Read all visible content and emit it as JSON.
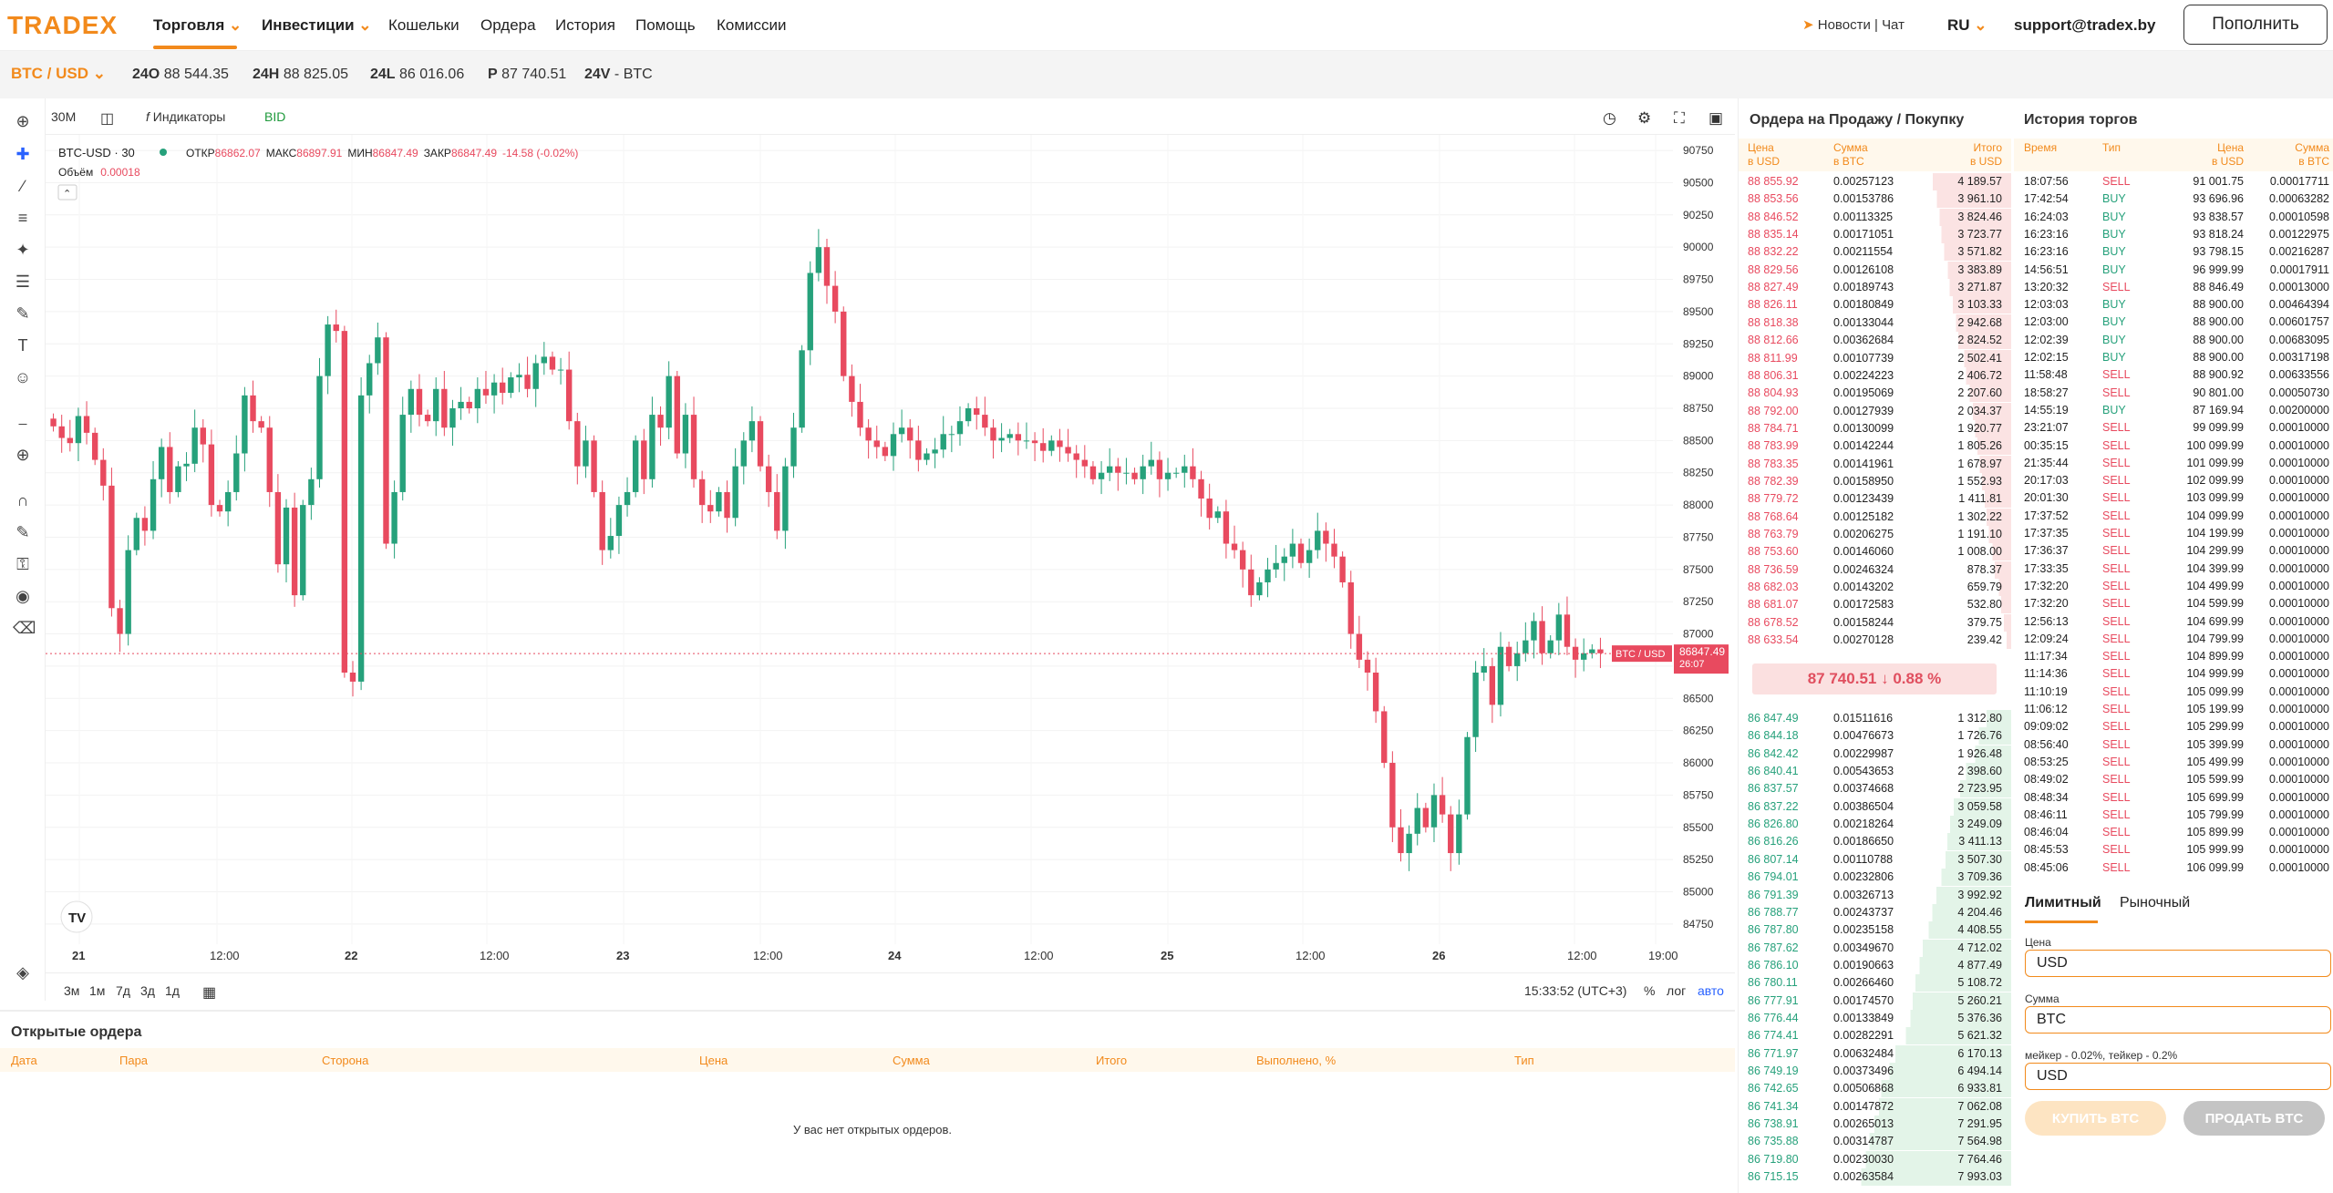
{
  "header": {
    "logo": "TRADEX",
    "nav": [
      "Торговля",
      "Инвестиции",
      "Кошельки",
      "Ордера",
      "История",
      "Помощь",
      "Комиссии"
    ],
    "news": "Новости",
    "chat": "Чат",
    "lang": "RU",
    "email": "support@tradex.by",
    "deposit": "Пополнить"
  },
  "ticker": {
    "pair": "BTC / USD",
    "open_label": "24O",
    "open": "88 544.35",
    "high_label": "24H",
    "high": "88 825.05",
    "low_label": "24L",
    "low": "86 016.06",
    "price_label": "P",
    "price": "87 740.51",
    "vol_label": "24V",
    "vol": "- BTC"
  },
  "charttop": {
    "interval": "30M",
    "indicators": "Индикаторы",
    "bid": "BID"
  },
  "legend": {
    "symbol": "BTC-USD · 30",
    "o_label": "ОТКР",
    "o": "86862.07",
    "h_label": "МАКС",
    "h": "86897.91",
    "l_label": "МИН",
    "l": "86847.49",
    "c_label": "ЗАКР",
    "c": "86847.49",
    "chg": "-14.58 (-0.02%)",
    "vol_label": "Объём",
    "vol": "0.00018"
  },
  "price_tag": {
    "label": "BTC / USD",
    "price": "86847.49",
    "timer": "26:07"
  },
  "chartbottom": {
    "ranges": [
      "3м",
      "1м",
      "7д",
      "3д",
      "1д"
    ],
    "time": "15:33:52 (UTC+3)",
    "pct": "%",
    "log": "лог",
    "auto": "авто"
  },
  "chart_data": {
    "type": "candlestick",
    "title": "BTC-USD · 30",
    "y_ticks": [
      90750,
      90500,
      90250,
      90000,
      89750,
      89500,
      89250,
      89000,
      88750,
      88500,
      88250,
      88000,
      87750,
      87500,
      87250,
      87000,
      86750,
      86500,
      86250,
      86000,
      85750,
      85500,
      85250,
      85000,
      84750
    ],
    "ylim": [
      84650,
      90800
    ],
    "x_ticks": [
      "21",
      "12:00",
      "22",
      "12:00",
      "23",
      "12:00",
      "24",
      "12:00",
      "25",
      "12:00",
      "26",
      "12:00",
      "19:00"
    ],
    "last_price": 86847.49,
    "close": [
      88610,
      88520,
      88480,
      88690,
      88560,
      88350,
      88150,
      87200,
      87000,
      87650,
      87900,
      87800,
      88200,
      88450,
      88100,
      88300,
      88320,
      88600,
      88470,
      88000,
      87950,
      88100,
      88400,
      88850,
      88650,
      88600,
      88100,
      87540,
      87980,
      87300,
      88000,
      88200,
      89000,
      89400,
      89350,
      86700,
      86630,
      88850,
      89100,
      89300,
      87700,
      88100,
      88700,
      88900,
      88700,
      88650,
      88900,
      88600,
      88750,
      88800,
      88750,
      88900,
      88850,
      88950,
      88870,
      88990,
      89010,
      88900,
      89100,
      89150,
      89050,
      89050,
      88650,
      88300,
      88500,
      88100,
      87650,
      87760,
      88000,
      88100,
      88500,
      88200,
      88700,
      88600,
      89000,
      88400,
      88700,
      88200,
      88000,
      87950,
      88100,
      87900,
      88300,
      88500,
      88650,
      88300,
      88100,
      87800,
      88300,
      88600,
      89200,
      89800,
      90000,
      89700,
      89500,
      89000,
      88800,
      88600,
      88500,
      88450,
      88380,
      88550,
      88600,
      88500,
      88350,
      88400,
      88430,
      88550,
      88550,
      88650,
      88750,
      88700,
      88600,
      88500,
      88520,
      88550,
      88500,
      88500,
      88480,
      88420,
      88500,
      88450,
      88400,
      88350,
      88300,
      88200,
      88250,
      88300,
      88250,
      88250,
      88200,
      88300,
      88350,
      88200,
      88250,
      88250,
      88300,
      88200,
      88050,
      87900,
      87950,
      87700,
      87650,
      87500,
      87300,
      87400,
      87500,
      87550,
      87600,
      87700,
      87550,
      87650,
      87800,
      87700,
      87600,
      87400,
      87000,
      86800,
      86700,
      86400,
      86000,
      85500,
      85300,
      85450,
      85650,
      85500,
      85750,
      85600,
      85300,
      85600,
      86200,
      86700,
      86750,
      86450,
      86900,
      86750,
      86850,
      86950,
      87100,
      86850,
      86950,
      87150,
      86900,
      86800,
      86850,
      86880,
      86850
    ]
  },
  "orderbook": {
    "title": "Ордера на Продажу / Покупку",
    "h_price": "Цена",
    "h_price_u": "в USD",
    "h_amount": "Сумма",
    "h_amount_u": "в BTC",
    "h_total": "Итого",
    "h_total_u": "в USD",
    "asks": [
      [
        "88 855.92",
        "0.00257123",
        "4 189.57"
      ],
      [
        "88 853.56",
        "0.00153786",
        "3 961.10"
      ],
      [
        "88 846.52",
        "0.00113325",
        "3 824.46"
      ],
      [
        "88 835.14",
        "0.00171051",
        "3 723.77"
      ],
      [
        "88 832.22",
        "0.00211554",
        "3 571.82"
      ],
      [
        "88 829.56",
        "0.00126108",
        "3 383.89"
      ],
      [
        "88 827.49",
        "0.00189743",
        "3 271.87"
      ],
      [
        "88 826.11",
        "0.00180849",
        "3 103.33"
      ],
      [
        "88 818.38",
        "0.00133044",
        "2 942.68"
      ],
      [
        "88 812.66",
        "0.00362684",
        "2 824.52"
      ],
      [
        "88 811.99",
        "0.00107739",
        "2 502.41"
      ],
      [
        "88 806.31",
        "0.00224223",
        "2 406.72"
      ],
      [
        "88 804.93",
        "0.00195069",
        "2 207.60"
      ],
      [
        "88 792.00",
        "0.00127939",
        "2 034.37"
      ],
      [
        "88 784.71",
        "0.00130099",
        "1 920.77"
      ],
      [
        "88 783.99",
        "0.00142244",
        "1 805.26"
      ],
      [
        "88 783.35",
        "0.00141961",
        "1 678.97"
      ],
      [
        "88 782.39",
        "0.00158950",
        "1 552.93"
      ],
      [
        "88 779.72",
        "0.00123439",
        "1 411.81"
      ],
      [
        "88 768.64",
        "0.00125182",
        "1 302.22"
      ],
      [
        "88 763.79",
        "0.00206275",
        "1 191.10"
      ],
      [
        "88 753.60",
        "0.00146060",
        "1 008.00"
      ],
      [
        "88 736.59",
        "0.00246324",
        "878.37"
      ],
      [
        "88 682.03",
        "0.00143202",
        "659.79"
      ],
      [
        "88 681.07",
        "0.00172583",
        "532.80"
      ],
      [
        "88 678.52",
        "0.00158244",
        "379.75"
      ],
      [
        "88 633.54",
        "0.00270128",
        "239.42"
      ]
    ],
    "mid": "87 740.51",
    "mid_change": "0.88 %",
    "bids": [
      [
        "86 847.49",
        "0.01511616",
        "1 312.80"
      ],
      [
        "86 844.18",
        "0.00476673",
        "1 726.76"
      ],
      [
        "86 842.42",
        "0.00229987",
        "1 926.48"
      ],
      [
        "86 840.41",
        "0.00543653",
        "2 398.60"
      ],
      [
        "86 837.57",
        "0.00374668",
        "2 723.95"
      ],
      [
        "86 837.22",
        "0.00386504",
        "3 059.58"
      ],
      [
        "86 826.80",
        "0.00218264",
        "3 249.09"
      ],
      [
        "86 816.26",
        "0.00186650",
        "3 411.13"
      ],
      [
        "86 807.14",
        "0.00110788",
        "3 507.30"
      ],
      [
        "86 794.01",
        "0.00232806",
        "3 709.36"
      ],
      [
        "86 791.39",
        "0.00326713",
        "3 992.92"
      ],
      [
        "86 788.77",
        "0.00243737",
        "4 204.46"
      ],
      [
        "86 787.80",
        "0.00235158",
        "4 408.55"
      ],
      [
        "86 787.62",
        "0.00349670",
        "4 712.02"
      ],
      [
        "86 786.10",
        "0.00190663",
        "4 877.49"
      ],
      [
        "86 780.11",
        "0.00266460",
        "5 108.72"
      ],
      [
        "86 777.91",
        "0.00174570",
        "5 260.21"
      ],
      [
        "86 776.44",
        "0.00133849",
        "5 376.36"
      ],
      [
        "86 774.41",
        "0.00282291",
        "5 621.32"
      ],
      [
        "86 771.97",
        "0.00632484",
        "6 170.13"
      ],
      [
        "86 749.19",
        "0.00373496",
        "6 494.14"
      ],
      [
        "86 742.65",
        "0.00506868",
        "6 933.81"
      ],
      [
        "86 741.34",
        "0.00147872",
        "7 062.08"
      ],
      [
        "86 738.91",
        "0.00265013",
        "7 291.95"
      ],
      [
        "86 735.88",
        "0.00314787",
        "7 564.98"
      ],
      [
        "86 719.80",
        "0.00230030",
        "7 764.46"
      ],
      [
        "86 715.15",
        "0.00263584",
        "7 993.03"
      ]
    ]
  },
  "trades": {
    "title": "История торгов",
    "h_time": "Время",
    "h_type": "Тип",
    "h_price": "Цена",
    "h_price_u": "в USD",
    "h_amount": "Сумма",
    "h_amount_u": "в BTC",
    "rows": [
      [
        "18:07:56",
        "SELL",
        "91 001.75",
        "0.00017711"
      ],
      [
        "17:42:54",
        "BUY",
        "93 696.96",
        "0.00063282"
      ],
      [
        "16:24:03",
        "BUY",
        "93 838.57",
        "0.00010598"
      ],
      [
        "16:23:16",
        "BUY",
        "93 818.24",
        "0.00122975"
      ],
      [
        "16:23:16",
        "BUY",
        "93 798.15",
        "0.00216287"
      ],
      [
        "14:56:51",
        "BUY",
        "96 999.99",
        "0.00017911"
      ],
      [
        "13:20:32",
        "SELL",
        "88 846.49",
        "0.00013000"
      ],
      [
        "12:03:03",
        "BUY",
        "88 900.00",
        "0.00464394"
      ],
      [
        "12:03:00",
        "BUY",
        "88 900.00",
        "0.00601757"
      ],
      [
        "12:02:39",
        "BUY",
        "88 900.00",
        "0.00683095"
      ],
      [
        "12:02:15",
        "BUY",
        "88 900.00",
        "0.00317198"
      ],
      [
        "11:58:48",
        "SELL",
        "88 900.92",
        "0.00633556"
      ],
      [
        "18:58:27",
        "SELL",
        "90 801.00",
        "0.00050730"
      ],
      [
        "14:55:19",
        "BUY",
        "87 169.94",
        "0.00200000"
      ],
      [
        "23:21:07",
        "SELL",
        "99 099.99",
        "0.00010000"
      ],
      [
        "00:35:15",
        "SELL",
        "100 099.99",
        "0.00010000"
      ],
      [
        "21:35:44",
        "SELL",
        "101 099.99",
        "0.00010000"
      ],
      [
        "20:17:03",
        "SELL",
        "102 099.99",
        "0.00010000"
      ],
      [
        "20:01:30",
        "SELL",
        "103 099.99",
        "0.00010000"
      ],
      [
        "17:37:52",
        "SELL",
        "104 099.99",
        "0.00010000"
      ],
      [
        "17:37:35",
        "SELL",
        "104 199.99",
        "0.00010000"
      ],
      [
        "17:36:37",
        "SELL",
        "104 299.99",
        "0.00010000"
      ],
      [
        "17:33:35",
        "SELL",
        "104 399.99",
        "0.00010000"
      ],
      [
        "17:32:20",
        "SELL",
        "104 499.99",
        "0.00010000"
      ],
      [
        "17:32:20",
        "SELL",
        "104 599.99",
        "0.00010000"
      ],
      [
        "12:56:13",
        "SELL",
        "104 699.99",
        "0.00010000"
      ],
      [
        "12:09:24",
        "SELL",
        "104 799.99",
        "0.00010000"
      ],
      [
        "11:17:34",
        "SELL",
        "104 899.99",
        "0.00010000"
      ],
      [
        "11:14:36",
        "SELL",
        "104 999.99",
        "0.00010000"
      ],
      [
        "11:10:19",
        "SELL",
        "105 099.99",
        "0.00010000"
      ],
      [
        "11:06:12",
        "SELL",
        "105 199.99",
        "0.00010000"
      ],
      [
        "09:09:02",
        "SELL",
        "105 299.99",
        "0.00010000"
      ],
      [
        "08:56:40",
        "SELL",
        "105 399.99",
        "0.00010000"
      ],
      [
        "08:53:25",
        "SELL",
        "105 499.99",
        "0.00010000"
      ],
      [
        "08:49:02",
        "SELL",
        "105 599.99",
        "0.00010000"
      ],
      [
        "08:48:34",
        "SELL",
        "105 699.99",
        "0.00010000"
      ],
      [
        "08:46:11",
        "SELL",
        "105 799.99",
        "0.00010000"
      ],
      [
        "08:46:04",
        "SELL",
        "105 899.99",
        "0.00010000"
      ],
      [
        "08:45:53",
        "SELL",
        "105 999.99",
        "0.00010000"
      ],
      [
        "08:45:06",
        "SELL",
        "106 099.99",
        "0.00010000"
      ]
    ]
  },
  "form": {
    "tab_limit": "Лимитный",
    "tab_market": "Рыночный",
    "price_label": "Цена",
    "price_ph": "USD",
    "amount_label": "Сумма",
    "amount_ph": "BTC",
    "fee": "мейкер - 0.02%, тейкер - 0.2%",
    "total_ph": "USD",
    "buy": "КУПИТЬ BTC",
    "sell": "ПРОДАТЬ BTC"
  },
  "open_orders": {
    "title": "Открытые ордера",
    "cols": [
      "Дата",
      "Пара",
      "Сторона",
      "Цена",
      "Сумма",
      "Итого",
      "Выполнено, %",
      "Тип"
    ],
    "empty": "У вас нет открытых ордеров."
  },
  "colors": {
    "accent": "#f28a1c",
    "up": "#26a17b",
    "down": "#e84a5f"
  }
}
